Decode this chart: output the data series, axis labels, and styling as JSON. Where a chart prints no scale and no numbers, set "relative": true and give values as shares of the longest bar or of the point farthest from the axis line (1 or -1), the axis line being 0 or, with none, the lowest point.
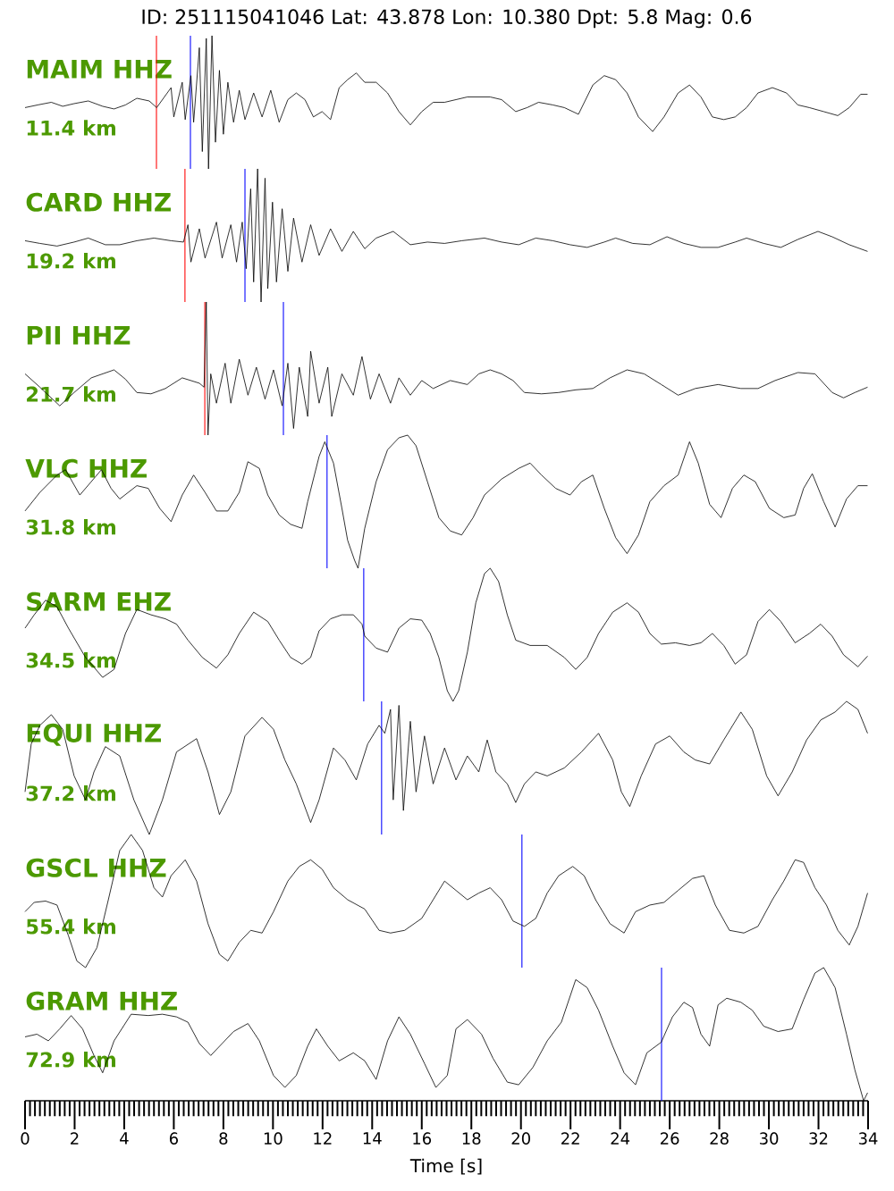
{
  "chart_data": [
    {
      "type": "line",
      "title": "ID: 251115041046 Lat:  43.878 Lon:  10.380 Dpt:     5.8 Mag:   0.6",
      "annotations": [
        "MAIM HHZ",
        "11.4 km"
      ],
      "relative": true,
      "xlim": [
        0,
        34
      ],
      "tick_labels": false,
      "color": "#000000",
      "x": [
        0,
        0.51,
        1.06,
        1.52,
        1.98,
        2.55,
        3.13,
        3.59,
        4.05,
        4.51,
        5.01,
        5.31,
        5.89,
        6.0,
        6.34,
        6.46,
        6.69,
        6.8,
        7.03,
        7.15,
        7.31,
        7.4,
        7.54,
        7.68,
        7.84,
        8.0,
        8.18,
        8.41,
        8.64,
        8.87,
        9.22,
        9.56,
        9.91,
        10.25,
        10.6,
        10.94,
        11.29,
        11.63,
        11.98,
        12.32,
        12.67,
        13.01,
        13.36,
        13.7,
        14.16,
        14.62,
        15.08,
        15.54,
        16.0,
        16.46,
        16.92,
        17.38,
        17.84,
        18.3,
        18.76,
        19.22,
        19.79,
        20.25,
        20.71,
        21.29,
        21.75,
        22.32,
        22.9,
        23.36,
        23.82,
        24.28,
        24.74,
        25.31,
        25.77,
        26.34,
        26.8,
        27.26,
        27.72,
        28.18,
        28.64,
        29.1,
        29.56,
        30.14,
        30.71,
        31.17,
        31.63,
        32.21,
        32.78,
        33.24,
        33.7,
        33.98
      ],
      "values": [
        0.46,
        0.48,
        0.5,
        0.47,
        0.49,
        0.51,
        0.47,
        0.45,
        0.48,
        0.53,
        0.51,
        0.46,
        0.61,
        0.39,
        0.65,
        0.37,
        0.7,
        0.35,
        0.91,
        0.13,
        0.98,
        0.0,
        1.0,
        0.2,
        0.74,
        0.26,
        0.65,
        0.35,
        0.59,
        0.37,
        0.57,
        0.39,
        0.59,
        0.35,
        0.52,
        0.57,
        0.52,
        0.39,
        0.43,
        0.37,
        0.61,
        0.67,
        0.72,
        0.65,
        0.65,
        0.57,
        0.43,
        0.33,
        0.43,
        0.5,
        0.5,
        0.52,
        0.54,
        0.54,
        0.54,
        0.52,
        0.43,
        0.46,
        0.5,
        0.48,
        0.46,
        0.41,
        0.63,
        0.7,
        0.67,
        0.57,
        0.39,
        0.28,
        0.39,
        0.57,
        0.63,
        0.54,
        0.39,
        0.37,
        0.39,
        0.46,
        0.57,
        0.61,
        0.57,
        0.48,
        0.46,
        0.43,
        0.4,
        0.46,
        0.56,
        0.56
      ],
      "ref_lines": [
        {
          "axis": "x",
          "value": 5.3,
          "color": "#ff0000"
        },
        {
          "axis": "x",
          "value": 6.67,
          "color": "#0000ff"
        }
      ]
    },
    {
      "type": "line",
      "annotations": [
        "CARD HHZ",
        "19.2 km"
      ],
      "relative": true,
      "xlim": [
        0,
        34
      ],
      "tick_labels": false,
      "color": "#000000",
      "x": [
        0,
        0.6,
        1.29,
        1.98,
        2.55,
        3.24,
        3.82,
        4.51,
        5.2,
        5.89,
        6.39,
        6.57,
        6.69,
        7.03,
        7.26,
        7.72,
        7.95,
        8.3,
        8.53,
        8.76,
        8.92,
        9.1,
        9.22,
        9.38,
        9.52,
        9.68,
        9.79,
        9.98,
        10.14,
        10.37,
        10.6,
        10.83,
        11.17,
        11.52,
        11.86,
        12.32,
        12.78,
        13.24,
        13.7,
        14.16,
        14.85,
        15.54,
        16.23,
        16.92,
        17.61,
        18.53,
        19.22,
        19.91,
        20.6,
        21.29,
        21.98,
        22.67,
        23.36,
        23.82,
        24.51,
        25.2,
        25.89,
        26.57,
        27.26,
        27.95,
        28.64,
        29.1,
        29.79,
        30.48,
        31.17,
        31.98,
        32.55,
        33.24,
        33.98
      ],
      "values": [
        0.46,
        0.44,
        0.42,
        0.45,
        0.48,
        0.43,
        0.43,
        0.46,
        0.48,
        0.46,
        0.45,
        0.58,
        0.3,
        0.55,
        0.33,
        0.6,
        0.33,
        0.58,
        0.3,
        0.6,
        0.25,
        0.85,
        0.15,
        1.0,
        0.0,
        0.93,
        0.1,
        0.75,
        0.15,
        0.7,
        0.23,
        0.63,
        0.3,
        0.58,
        0.35,
        0.55,
        0.38,
        0.53,
        0.4,
        0.48,
        0.53,
        0.43,
        0.45,
        0.44,
        0.46,
        0.48,
        0.45,
        0.43,
        0.48,
        0.46,
        0.43,
        0.41,
        0.45,
        0.48,
        0.44,
        0.43,
        0.49,
        0.44,
        0.41,
        0.41,
        0.45,
        0.48,
        0.44,
        0.41,
        0.47,
        0.53,
        0.49,
        0.43,
        0.38
      ],
      "ref_lines": [
        {
          "axis": "x",
          "value": 6.45,
          "color": "#ff0000"
        },
        {
          "axis": "x",
          "value": 8.87,
          "color": "#0000ff"
        }
      ]
    },
    {
      "type": "line",
      "annotations": [
        "PII HHZ",
        "21.7 km"
      ],
      "relative": true,
      "xlim": [
        0,
        34
      ],
      "tick_labels": false,
      "color": "#000000",
      "x": [
        0,
        0.6,
        1.4,
        1.98,
        2.67,
        3.59,
        4.05,
        4.51,
        5.08,
        5.66,
        6.34,
        7.03,
        7.22,
        7.31,
        7.38,
        7.49,
        7.72,
        8.07,
        8.3,
        8.64,
        8.99,
        9.33,
        9.68,
        10.02,
        10.37,
        10.6,
        10.83,
        11.06,
        11.4,
        11.52,
        11.86,
        12.21,
        12.37,
        12.78,
        13.24,
        13.59,
        13.93,
        14.28,
        14.74,
        15.08,
        15.54,
        16.0,
        16.46,
        17.15,
        17.84,
        18.3,
        18.76,
        19.22,
        19.68,
        20.14,
        20.83,
        21.52,
        22.21,
        22.9,
        23.59,
        24.28,
        24.97,
        25.66,
        26.34,
        27.03,
        27.95,
        28.87,
        29.56,
        30.25,
        31.17,
        31.86,
        32.55,
        33.01,
        33.47,
        33.98
      ],
      "values": [
        0.46,
        0.36,
        0.22,
        0.32,
        0.43,
        0.49,
        0.42,
        0.32,
        0.31,
        0.35,
        0.43,
        0.39,
        0.36,
        1.0,
        0.0,
        0.46,
        0.24,
        0.54,
        0.24,
        0.57,
        0.3,
        0.51,
        0.27,
        0.49,
        0.22,
        0.54,
        0.05,
        0.51,
        0.14,
        0.63,
        0.24,
        0.51,
        0.14,
        0.46,
        0.3,
        0.59,
        0.27,
        0.46,
        0.24,
        0.43,
        0.3,
        0.41,
        0.35,
        0.41,
        0.38,
        0.46,
        0.49,
        0.46,
        0.41,
        0.32,
        0.31,
        0.32,
        0.34,
        0.35,
        0.43,
        0.49,
        0.46,
        0.38,
        0.3,
        0.35,
        0.38,
        0.35,
        0.35,
        0.41,
        0.47,
        0.46,
        0.32,
        0.28,
        0.32,
        0.36
      ],
      "ref_lines": [
        {
          "axis": "x",
          "value": 7.25,
          "color": "#ff0000"
        },
        {
          "axis": "x",
          "value": 10.42,
          "color": "#0000ff"
        }
      ]
    },
    {
      "type": "line",
      "annotations": [
        "VLC HHZ",
        "31.8 km"
      ],
      "relative": true,
      "xlim": [
        0,
        34
      ],
      "tick_labels": false,
      "color": "#000000",
      "x": [
        0,
        0.6,
        1.29,
        1.63,
        2.21,
        2.67,
        3.08,
        3.47,
        3.82,
        4.51,
        4.97,
        5.43,
        5.89,
        6.34,
        6.8,
        7.26,
        7.72,
        8.18,
        8.64,
        8.99,
        9.45,
        9.79,
        10.25,
        10.71,
        11.17,
        11.4,
        11.86,
        12.09,
        12.44,
        12.78,
        13.01,
        13.29,
        13.43,
        13.7,
        14.16,
        14.62,
        15.08,
        15.43,
        15.77,
        16.23,
        16.69,
        17.15,
        17.61,
        18.07,
        18.53,
        19.22,
        19.91,
        20.37,
        20.83,
        21.4,
        21.98,
        22.44,
        22.9,
        23.36,
        23.82,
        24.28,
        24.74,
        25.2,
        25.77,
        26.34,
        26.8,
        27.15,
        27.61,
        28.07,
        28.53,
        28.99,
        29.45,
        30.02,
        30.6,
        31.06,
        31.4,
        31.75,
        32.21,
        32.67,
        33.13,
        33.59,
        33.98
      ],
      "values": [
        0.43,
        0.57,
        0.7,
        0.74,
        0.55,
        0.65,
        0.74,
        0.6,
        0.52,
        0.62,
        0.6,
        0.45,
        0.35,
        0.55,
        0.7,
        0.57,
        0.43,
        0.43,
        0.57,
        0.8,
        0.75,
        0.55,
        0.4,
        0.33,
        0.3,
        0.5,
        0.84,
        0.95,
        0.79,
        0.45,
        0.21,
        0.06,
        0.0,
        0.3,
        0.65,
        0.89,
        0.98,
        1.0,
        0.92,
        0.65,
        0.38,
        0.28,
        0.25,
        0.38,
        0.55,
        0.67,
        0.75,
        0.79,
        0.7,
        0.6,
        0.55,
        0.65,
        0.7,
        0.45,
        0.23,
        0.11,
        0.25,
        0.5,
        0.62,
        0.7,
        0.95,
        0.79,
        0.48,
        0.38,
        0.6,
        0.7,
        0.65,
        0.45,
        0.38,
        0.4,
        0.6,
        0.71,
        0.5,
        0.31,
        0.52,
        0.62,
        0.62
      ],
      "ref_lines": [
        {
          "axis": "x",
          "value": 12.18,
          "color": "#0000ff"
        }
      ]
    },
    {
      "type": "line",
      "annotations": [
        "SARM EHZ",
        "34.5 km"
      ],
      "relative": true,
      "xlim": [
        0,
        34
      ],
      "tick_labels": false,
      "color": "#000000",
      "x": [
        0,
        0.37,
        0.83,
        1.29,
        1.75,
        2.44,
        3.13,
        3.59,
        4.05,
        4.51,
        5.08,
        5.66,
        6.11,
        6.57,
        7.15,
        7.72,
        8.18,
        8.64,
        9.22,
        9.79,
        10.25,
        10.71,
        11.17,
        11.52,
        11.86,
        12.32,
        12.78,
        13.24,
        13.59,
        13.7,
        14.16,
        14.62,
        15.08,
        15.54,
        16.0,
        16.34,
        16.69,
        17.03,
        17.26,
        17.49,
        17.84,
        18.18,
        18.53,
        18.76,
        19.1,
        19.45,
        19.79,
        20.37,
        21.06,
        21.75,
        22.21,
        22.67,
        23.13,
        23.7,
        24.28,
        24.74,
        25.2,
        25.66,
        26.23,
        26.8,
        27.26,
        27.72,
        28.18,
        28.64,
        29.1,
        29.56,
        30.02,
        30.48,
        31.06,
        31.63,
        32.09,
        32.55,
        33.01,
        33.59,
        33.98
      ],
      "values": [
        0.55,
        0.65,
        0.76,
        0.71,
        0.55,
        0.33,
        0.18,
        0.24,
        0.51,
        0.69,
        0.65,
        0.62,
        0.58,
        0.46,
        0.33,
        0.25,
        0.35,
        0.51,
        0.67,
        0.6,
        0.46,
        0.33,
        0.28,
        0.33,
        0.53,
        0.62,
        0.65,
        0.65,
        0.58,
        0.49,
        0.4,
        0.37,
        0.55,
        0.62,
        0.61,
        0.51,
        0.33,
        0.08,
        0.0,
        0.08,
        0.37,
        0.74,
        0.96,
        1.0,
        0.9,
        0.65,
        0.46,
        0.42,
        0.42,
        0.33,
        0.24,
        0.33,
        0.51,
        0.67,
        0.74,
        0.67,
        0.51,
        0.43,
        0.44,
        0.42,
        0.44,
        0.51,
        0.42,
        0.28,
        0.35,
        0.6,
        0.69,
        0.6,
        0.44,
        0.51,
        0.58,
        0.49,
        0.35,
        0.26,
        0.34
      ],
      "ref_lines": [
        {
          "axis": "x",
          "value": 13.66,
          "color": "#0000ff"
        }
      ]
    },
    {
      "type": "line",
      "annotations": [
        "EQUI HHZ",
        "37.2 km"
      ],
      "relative": true,
      "xlim": [
        0,
        34
      ],
      "tick_labels": false,
      "color": "#000000",
      "x": [
        0,
        0.25,
        0.6,
        1.06,
        1.52,
        1.98,
        2.44,
        2.78,
        3.24,
        3.82,
        4.39,
        5.01,
        5.54,
        6.11,
        6.92,
        7.38,
        7.84,
        8.3,
        8.87,
        9.56,
        10.02,
        10.48,
        10.94,
        11.52,
        11.86,
        12.44,
        12.9,
        13.36,
        13.82,
        14.28,
        14.51,
        14.74,
        14.85,
        15.08,
        15.26,
        15.54,
        15.77,
        16.11,
        16.46,
        16.92,
        17.38,
        17.84,
        18.3,
        18.64,
        18.99,
        19.45,
        19.79,
        20.14,
        20.6,
        21.06,
        21.75,
        22.44,
        23.13,
        23.7,
        24.05,
        24.39,
        24.85,
        25.43,
        26.0,
        26.57,
        27.03,
        27.61,
        28.18,
        28.87,
        29.33,
        29.91,
        30.37,
        30.94,
        31.52,
        32.09,
        32.67,
        33.13,
        33.59,
        33.98
      ],
      "values": [
        0.32,
        0.68,
        0.82,
        0.9,
        0.79,
        0.44,
        0.26,
        0.47,
        0.66,
        0.59,
        0.26,
        0.0,
        0.26,
        0.62,
        0.72,
        0.47,
        0.15,
        0.32,
        0.74,
        0.88,
        0.79,
        0.56,
        0.38,
        0.09,
        0.26,
        0.65,
        0.56,
        0.41,
        0.68,
        0.82,
        0.76,
        0.94,
        0.26,
        0.97,
        0.18,
        0.85,
        0.32,
        0.74,
        0.38,
        0.65,
        0.41,
        0.59,
        0.47,
        0.71,
        0.47,
        0.38,
        0.24,
        0.38,
        0.47,
        0.44,
        0.5,
        0.62,
        0.76,
        0.56,
        0.32,
        0.21,
        0.44,
        0.68,
        0.74,
        0.62,
        0.56,
        0.53,
        0.71,
        0.92,
        0.79,
        0.44,
        0.29,
        0.47,
        0.71,
        0.86,
        0.92,
        1.0,
        0.94,
        0.76
      ],
      "ref_lines": [
        {
          "axis": "x",
          "value": 14.38,
          "color": "#0000ff"
        }
      ]
    },
    {
      "type": "line",
      "annotations": [
        "GSCL HHZ",
        "55.4 km"
      ],
      "relative": true,
      "xlim": [
        0,
        34
      ],
      "tick_labels": false,
      "color": "#000000",
      "x": [
        0,
        0.37,
        0.83,
        1.29,
        1.75,
        2.09,
        2.44,
        2.9,
        3.36,
        3.82,
        4.28,
        4.74,
        5.2,
        5.54,
        5.89,
        6.46,
        6.92,
        7.38,
        7.84,
        8.18,
        8.64,
        9.1,
        9.56,
        10.02,
        10.6,
        11.06,
        11.52,
        11.98,
        12.44,
        13.01,
        13.7,
        14.28,
        14.74,
        15.31,
        16.0,
        16.46,
        16.92,
        17.38,
        17.84,
        18.3,
        18.76,
        19.22,
        19.68,
        20.14,
        20.6,
        21.06,
        21.52,
        22.09,
        22.55,
        23.01,
        23.59,
        24.16,
        24.62,
        25.2,
        25.77,
        26.34,
        26.92,
        27.38,
        27.84,
        28.41,
        28.99,
        29.56,
        30.14,
        30.6,
        31.06,
        31.4,
        31.86,
        32.32,
        32.78,
        33.24,
        33.59,
        33.98
      ],
      "values": [
        0.42,
        0.49,
        0.5,
        0.47,
        0.24,
        0.05,
        0.0,
        0.15,
        0.51,
        0.88,
        1.0,
        0.88,
        0.6,
        0.53,
        0.69,
        0.81,
        0.65,
        0.33,
        0.1,
        0.05,
        0.19,
        0.28,
        0.26,
        0.42,
        0.65,
        0.76,
        0.81,
        0.74,
        0.6,
        0.51,
        0.44,
        0.28,
        0.26,
        0.28,
        0.37,
        0.51,
        0.65,
        0.58,
        0.51,
        0.56,
        0.6,
        0.51,
        0.35,
        0.31,
        0.37,
        0.56,
        0.69,
        0.76,
        0.69,
        0.51,
        0.33,
        0.26,
        0.42,
        0.47,
        0.49,
        0.58,
        0.67,
        0.69,
        0.47,
        0.28,
        0.26,
        0.31,
        0.51,
        0.65,
        0.81,
        0.79,
        0.6,
        0.47,
        0.28,
        0.17,
        0.31,
        0.56
      ],
      "ref_lines": [
        {
          "axis": "x",
          "value": 20.04,
          "color": "#0000ff"
        }
      ]
    },
    {
      "type": "line",
      "annotations": [
        "GRAM HHZ",
        "72.9 km"
      ],
      "relative": true,
      "xlim": [
        0,
        34
      ],
      "tick_labels": "x",
      "xlabel": "Time [s]",
      "color": "#000000",
      "xticks": [
        0,
        2,
        4,
        6,
        8,
        10,
        12,
        14,
        16,
        18,
        20,
        22,
        24,
        26,
        28,
        30,
        32,
        34
      ],
      "x": [
        0,
        0.48,
        0.94,
        1.4,
        1.86,
        2.32,
        2.78,
        3.13,
        3.59,
        4.28,
        4.97,
        5.54,
        6.11,
        6.57,
        7.03,
        7.49,
        7.95,
        8.41,
        8.99,
        9.45,
        10.02,
        10.48,
        10.94,
        11.4,
        11.75,
        12.21,
        12.67,
        13.24,
        13.7,
        14.16,
        14.62,
        15.08,
        15.54,
        16.11,
        16.57,
        17.03,
        17.38,
        17.84,
        18.41,
        18.87,
        19.45,
        19.91,
        20.48,
        21.06,
        21.63,
        22.21,
        22.67,
        23.13,
        23.7,
        24.16,
        24.62,
        25.08,
        25.66,
        26.11,
        26.57,
        26.92,
        27.26,
        27.61,
        27.95,
        28.3,
        28.87,
        29.33,
        29.79,
        30.37,
        30.94,
        31.4,
        31.86,
        32.21,
        32.67,
        33.13,
        33.47,
        33.82,
        33.98
      ],
      "values": [
        0.48,
        0.5,
        0.45,
        0.54,
        0.64,
        0.54,
        0.34,
        0.21,
        0.45,
        0.65,
        0.64,
        0.65,
        0.63,
        0.59,
        0.43,
        0.34,
        0.43,
        0.52,
        0.58,
        0.45,
        0.19,
        0.1,
        0.19,
        0.41,
        0.54,
        0.41,
        0.3,
        0.36,
        0.3,
        0.16,
        0.45,
        0.63,
        0.5,
        0.28,
        0.1,
        0.19,
        0.54,
        0.61,
        0.5,
        0.32,
        0.14,
        0.12,
        0.25,
        0.45,
        0.59,
        0.91,
        0.85,
        0.68,
        0.41,
        0.21,
        0.12,
        0.36,
        0.44,
        0.63,
        0.74,
        0.7,
        0.5,
        0.41,
        0.72,
        0.77,
        0.74,
        0.68,
        0.56,
        0.52,
        0.54,
        0.76,
        0.96,
        1.0,
        0.85,
        0.5,
        0.23,
        0.0,
        0.06
      ],
      "ref_lines": [
        {
          "axis": "x",
          "value": 25.67,
          "color": "#0000ff"
        }
      ]
    }
  ]
}
